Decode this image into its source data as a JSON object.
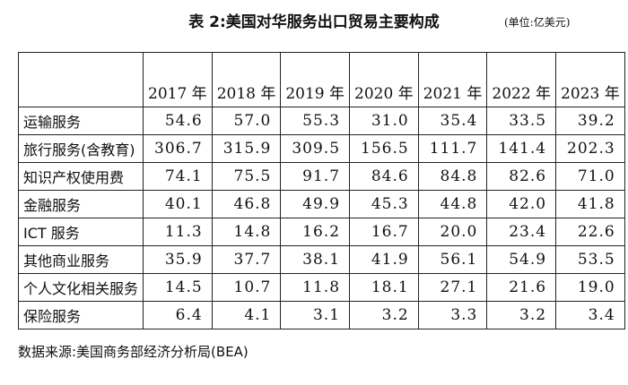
{
  "header": {
    "title": "表 2:美国对华服务出口贸易主要构成",
    "unit": "(单位:亿美元)"
  },
  "table": {
    "columns": [
      "",
      "2017 年",
      "2018 年",
      "2019 年",
      "2020 年",
      "2021 年",
      "2022 年",
      "2023 年"
    ],
    "rows": [
      [
        "运输服务",
        "54.6",
        "57.0",
        "55.3",
        "31.0",
        "35.4",
        "33.5",
        "39.2"
      ],
      [
        "旅行服务(含教育)",
        "306.7",
        "315.9",
        "309.5",
        "156.5",
        "111.7",
        "141.4",
        "202.3"
      ],
      [
        "知识产权使用费",
        "74.1",
        "75.5",
        "91.7",
        "84.6",
        "84.8",
        "82.6",
        "71.0"
      ],
      [
        "金融服务",
        "40.1",
        "46.8",
        "49.9",
        "45.3",
        "44.8",
        "42.0",
        "41.8"
      ],
      [
        "ICT 服务",
        "11.3",
        "14.8",
        "16.2",
        "16.7",
        "20.0",
        "23.4",
        "22.6"
      ],
      [
        "其他商业服务",
        "35.9",
        "37.7",
        "38.1",
        "41.9",
        "56.1",
        "54.9",
        "53.5"
      ],
      [
        "个人文化相关服务",
        "14.5",
        "10.7",
        "11.8",
        "18.1",
        "27.1",
        "21.6",
        "19.0"
      ],
      [
        "保险服务",
        "6.4",
        "4.1",
        "3.1",
        "3.2",
        "3.3",
        "3.2",
        "3.4"
      ]
    ]
  },
  "footer": {
    "source": "数据来源:美国商务部经济分析局(BEA)"
  }
}
